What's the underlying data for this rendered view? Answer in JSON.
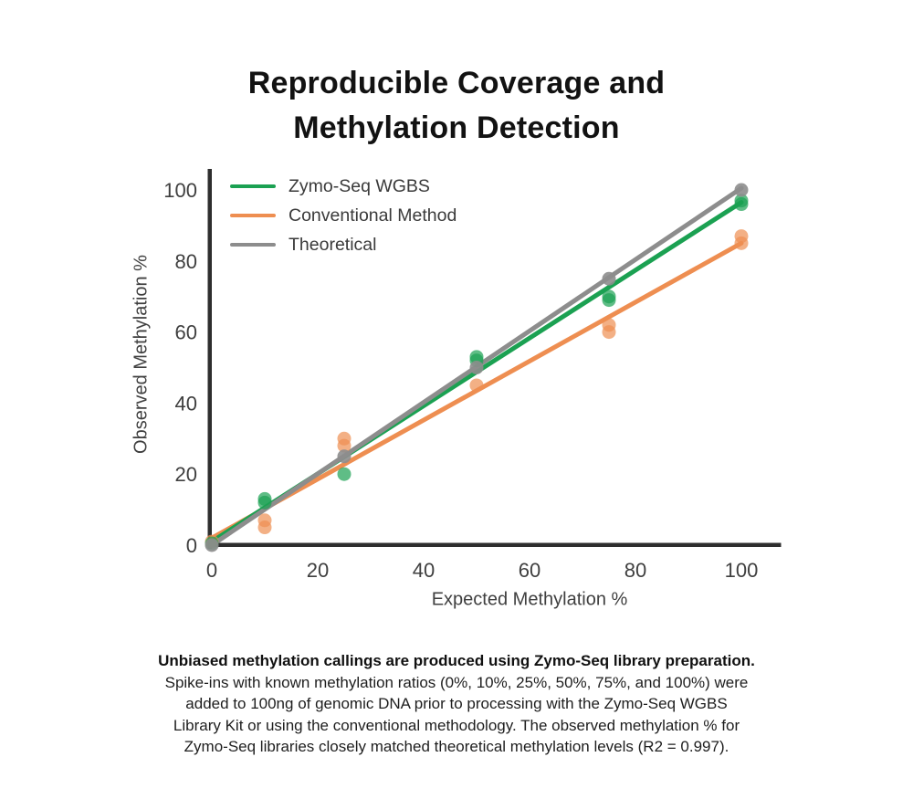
{
  "title": {
    "line1": "Reproducible Coverage and",
    "line2": "Methylation Detection"
  },
  "chart_data": {
    "type": "scatter",
    "title": "Reproducible Coverage and Methylation Detection",
    "xlabel": "Expected Methylation %",
    "ylabel": "Observed Methylation %",
    "xlim": [
      0,
      100
    ],
    "ylim": [
      0,
      100
    ],
    "x_ticks": [
      0,
      20,
      40,
      60,
      80,
      100
    ],
    "y_ticks": [
      0,
      20,
      40,
      60,
      80,
      100
    ],
    "grid": false,
    "legend_position": "top-left",
    "axis_color": "#2e2e2e",
    "tick_label_color": "#3f3f3f",
    "series": [
      {
        "id": "zymo",
        "name": "Zymo-Seq WGBS",
        "color": "#1ba152",
        "point_opacity": 0.7,
        "points": [
          [
            0,
            0.5
          ],
          [
            10,
            12
          ],
          [
            10,
            13
          ],
          [
            25,
            20
          ],
          [
            50,
            52
          ],
          [
            50,
            53
          ],
          [
            75,
            69
          ],
          [
            75,
            70
          ],
          [
            100,
            96
          ],
          [
            100,
            97
          ]
        ],
        "trend": [
          [
            0,
            1
          ],
          [
            100,
            96.5
          ]
        ]
      },
      {
        "id": "conventional",
        "name": "Conventional Method",
        "color": "#ee8e51",
        "point_opacity": 0.7,
        "points": [
          [
            0,
            1
          ],
          [
            10,
            5
          ],
          [
            10,
            7
          ],
          [
            25,
            28
          ],
          [
            25,
            30
          ],
          [
            50,
            45
          ],
          [
            75,
            60
          ],
          [
            75,
            62
          ],
          [
            100,
            85
          ],
          [
            100,
            87
          ]
        ],
        "trend": [
          [
            0,
            2
          ],
          [
            100,
            85
          ]
        ]
      },
      {
        "id": "theoretical",
        "name": "Theoretical",
        "color": "#8d8d8d",
        "point_opacity": 0.9,
        "points": [
          [
            0,
            0
          ],
          [
            25,
            25
          ],
          [
            50,
            50
          ],
          [
            75,
            75
          ],
          [
            100,
            100
          ]
        ],
        "trend": [
          [
            0,
            0
          ],
          [
            100,
            100.5
          ]
        ]
      }
    ]
  },
  "caption": {
    "line1": "Unbiased methylation callings are produced using Zymo-Seq library preparation.",
    "line2": "Spike-ins with known methylation ratios (0%, 10%, 25%, 50%, 75%, and 100%) were",
    "line3": "added to 100ng of genomic DNA prior to processing with the Zymo-Seq WGBS",
    "line4": "Library Kit or using the conventional methodology. The observed methylation % for",
    "line5": "Zymo-Seq libraries closely matched theoretical methylation levels (R2 = 0.997)."
  }
}
